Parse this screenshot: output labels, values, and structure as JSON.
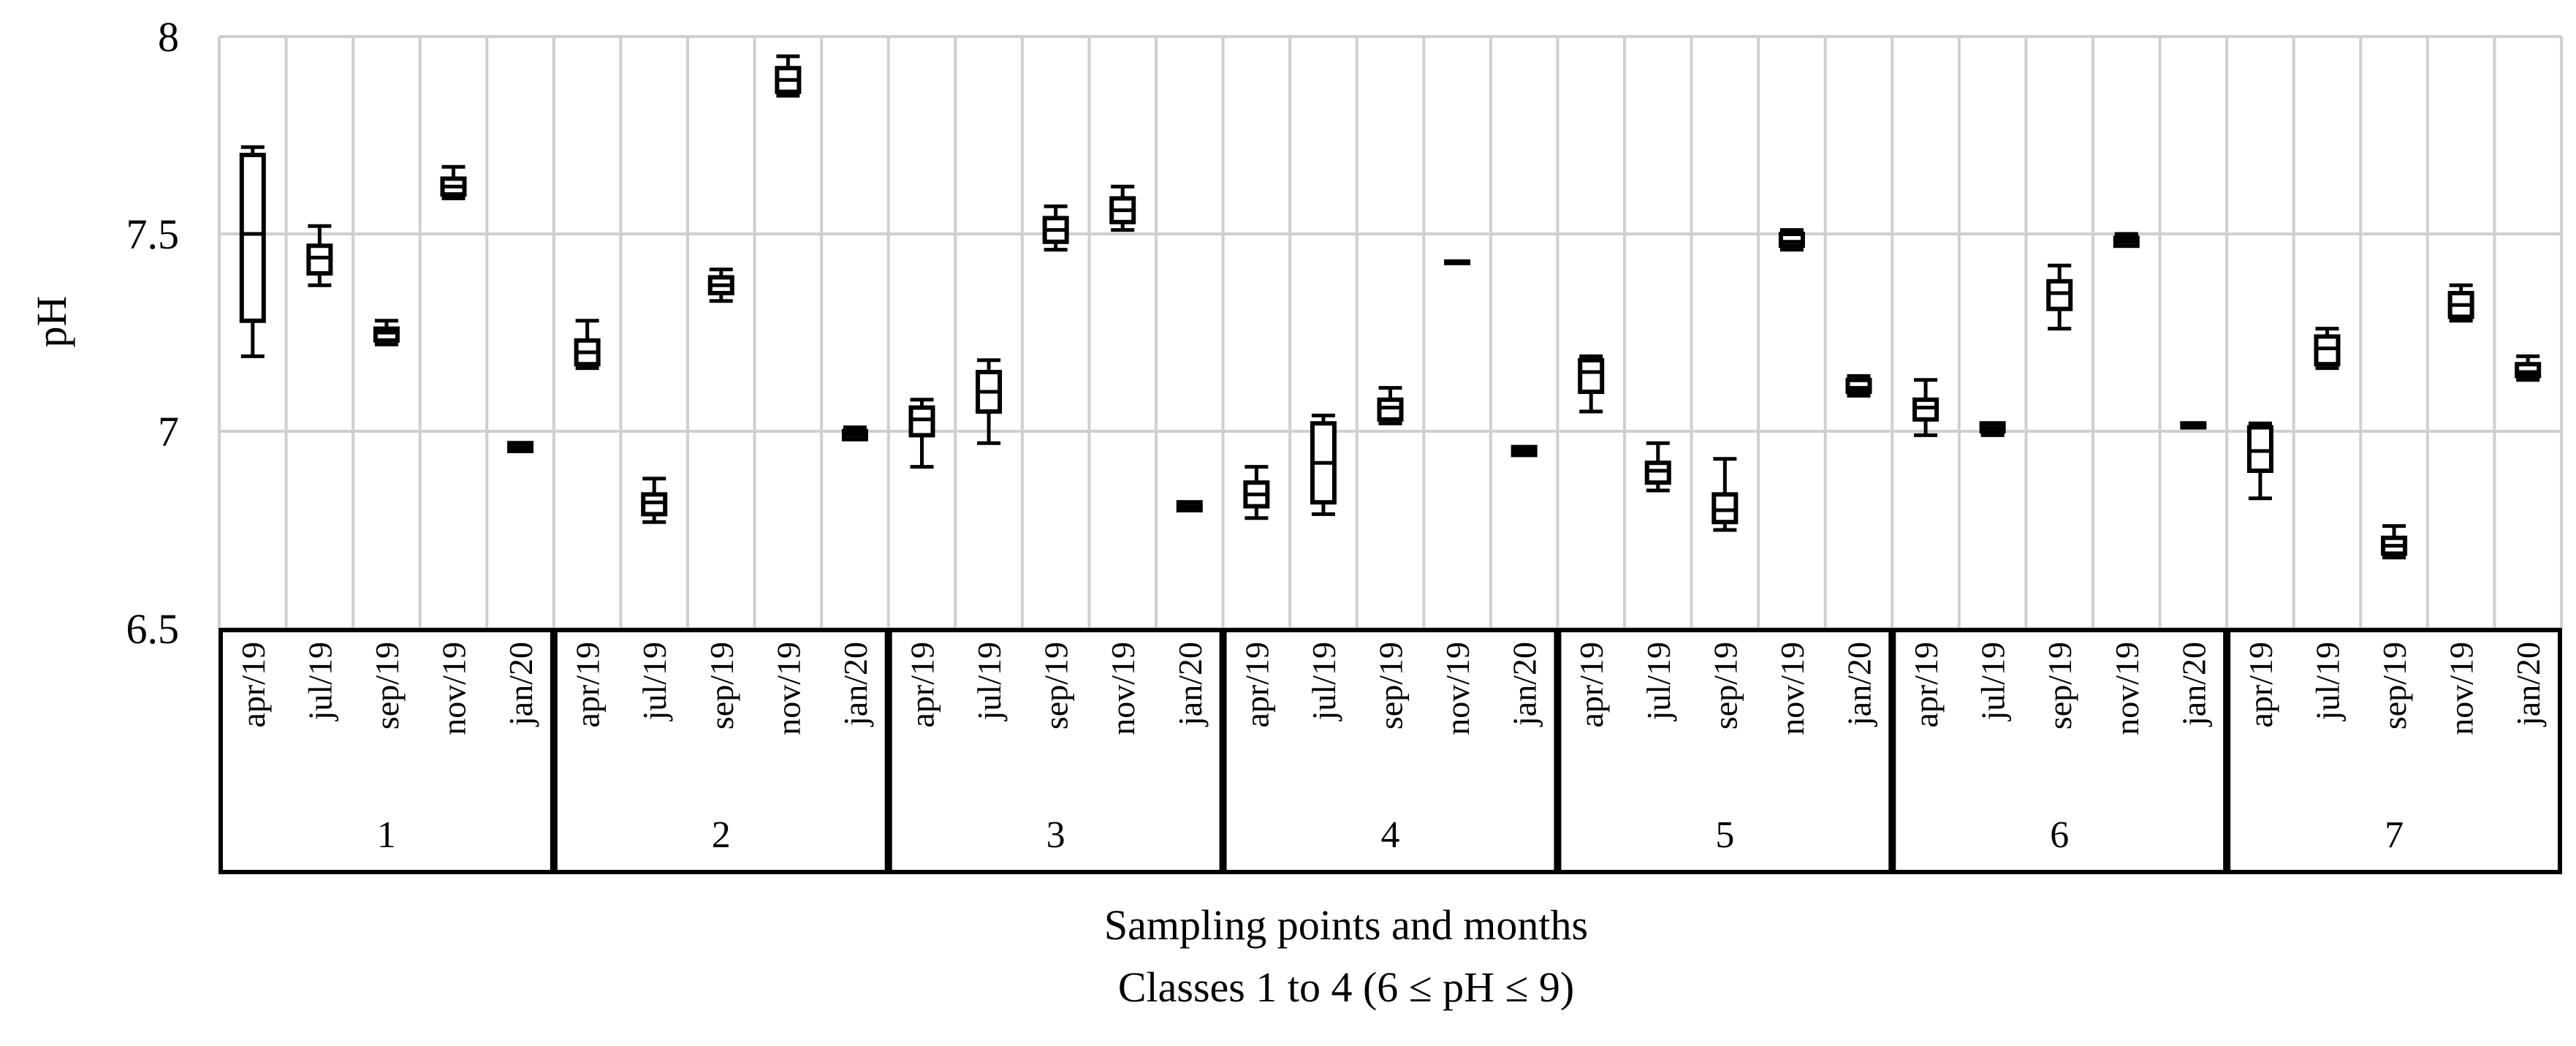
{
  "chart_data": {
    "type": "box",
    "ylabel": "pH",
    "xlabel": "Sampling points and months",
    "subtitle": "Classes 1 to 4 (6 ≤ pH ≤ 9)",
    "ylim": [
      6.5,
      8
    ],
    "yticks": [
      "6.5",
      "7",
      "7.5",
      "8"
    ],
    "ytick_values": [
      6.5,
      7.0,
      7.5,
      8.0
    ],
    "grid": true,
    "months": [
      "apr/19",
      "jul/19",
      "sep/19",
      "nov/19",
      "jan/20"
    ],
    "groups": [
      {
        "label": "1",
        "boxes": [
          {
            "month": "apr/19",
            "min": 7.19,
            "q1": 7.28,
            "median": 7.5,
            "q3": 7.7,
            "max": 7.72
          },
          {
            "month": "jul/19",
            "min": 7.37,
            "q1": 7.4,
            "median": 7.44,
            "q3": 7.47,
            "max": 7.52
          },
          {
            "month": "sep/19",
            "min": 7.22,
            "q1": 7.23,
            "median": 7.25,
            "q3": 7.26,
            "max": 7.28
          },
          {
            "month": "nov/19",
            "min": 7.59,
            "q1": 7.6,
            "median": 7.62,
            "q3": 7.64,
            "max": 7.67
          },
          {
            "month": "jan/20",
            "min": 6.95,
            "q1": 6.95,
            "median": 6.96,
            "q3": 6.97,
            "max": 6.97
          }
        ]
      },
      {
        "label": "2",
        "boxes": [
          {
            "month": "apr/19",
            "min": 7.16,
            "q1": 7.17,
            "median": 7.2,
            "q3": 7.23,
            "max": 7.28
          },
          {
            "month": "jul/19",
            "min": 6.77,
            "q1": 6.79,
            "median": 6.82,
            "q3": 6.84,
            "max": 6.88
          },
          {
            "month": "sep/19",
            "min": 7.33,
            "q1": 7.35,
            "median": 7.37,
            "q3": 7.39,
            "max": 7.41
          },
          {
            "month": "nov/19",
            "min": 7.85,
            "q1": 7.86,
            "median": 7.89,
            "q3": 7.92,
            "max": 7.95
          },
          {
            "month": "jan/20",
            "min": 6.98,
            "q1": 6.98,
            "median": 6.99,
            "q3": 7.0,
            "max": 7.01
          }
        ]
      },
      {
        "label": "3",
        "boxes": [
          {
            "month": "apr/19",
            "min": 6.91,
            "q1": 6.99,
            "median": 7.03,
            "q3": 7.06,
            "max": 7.08
          },
          {
            "month": "jul/19",
            "min": 6.97,
            "q1": 7.05,
            "median": 7.1,
            "q3": 7.15,
            "max": 7.18
          },
          {
            "month": "sep/19",
            "min": 7.46,
            "q1": 7.48,
            "median": 7.51,
            "q3": 7.54,
            "max": 7.57
          },
          {
            "month": "nov/19",
            "min": 7.51,
            "q1": 7.53,
            "median": 7.56,
            "q3": 7.59,
            "max": 7.62
          },
          {
            "month": "jan/20",
            "min": 6.8,
            "q1": 6.8,
            "median": 6.81,
            "q3": 6.82,
            "max": 6.82
          }
        ]
      },
      {
        "label": "4",
        "boxes": [
          {
            "month": "apr/19",
            "min": 6.78,
            "q1": 6.81,
            "median": 6.84,
            "q3": 6.87,
            "max": 6.91
          },
          {
            "month": "jul/19",
            "min": 6.79,
            "q1": 6.82,
            "median": 6.92,
            "q3": 7.02,
            "max": 7.04
          },
          {
            "month": "sep/19",
            "min": 7.02,
            "q1": 7.03,
            "median": 7.06,
            "q3": 7.08,
            "max": 7.11
          },
          {
            "month": "nov/19",
            "min": 7.43,
            "q1": 7.43,
            "median": 7.43,
            "q3": 7.43,
            "max": 7.43
          },
          {
            "month": "jan/20",
            "min": 6.94,
            "q1": 6.94,
            "median": 6.95,
            "q3": 6.96,
            "max": 6.96
          }
        ]
      },
      {
        "label": "5",
        "boxes": [
          {
            "month": "apr/19",
            "min": 7.05,
            "q1": 7.1,
            "median": 7.15,
            "q3": 7.18,
            "max": 7.19
          },
          {
            "month": "jul/19",
            "min": 6.85,
            "q1": 6.87,
            "median": 6.9,
            "q3": 6.92,
            "max": 6.97
          },
          {
            "month": "sep/19",
            "min": 6.75,
            "q1": 6.77,
            "median": 6.8,
            "q3": 6.84,
            "max": 6.93
          },
          {
            "month": "nov/19",
            "min": 7.46,
            "q1": 7.47,
            "median": 7.48,
            "q3": 7.5,
            "max": 7.51
          },
          {
            "month": "jan/20",
            "min": 7.09,
            "q1": 7.1,
            "median": 7.11,
            "q3": 7.13,
            "max": 7.14
          }
        ]
      },
      {
        "label": "6",
        "boxes": [
          {
            "month": "apr/19",
            "min": 6.99,
            "q1": 7.03,
            "median": 7.06,
            "q3": 7.08,
            "max": 7.13
          },
          {
            "month": "jul/19",
            "min": 6.99,
            "q1": 7.0,
            "median": 7.01,
            "q3": 7.02,
            "max": 7.02
          },
          {
            "month": "sep/19",
            "min": 7.26,
            "q1": 7.31,
            "median": 7.35,
            "q3": 7.38,
            "max": 7.42
          },
          {
            "month": "nov/19",
            "min": 7.47,
            "q1": 7.47,
            "median": 7.48,
            "q3": 7.49,
            "max": 7.5
          },
          {
            "month": "jan/20",
            "min": 7.01,
            "q1": 7.01,
            "median": 7.02,
            "q3": 7.02,
            "max": 7.02
          }
        ]
      },
      {
        "label": "7",
        "boxes": [
          {
            "month": "apr/19",
            "min": 6.83,
            "q1": 6.9,
            "median": 6.95,
            "q3": 7.01,
            "max": 7.02
          },
          {
            "month": "jul/19",
            "min": 7.16,
            "q1": 7.17,
            "median": 7.21,
            "q3": 7.24,
            "max": 7.26
          },
          {
            "month": "sep/19",
            "min": 6.68,
            "q1": 6.69,
            "median": 6.71,
            "q3": 6.73,
            "max": 6.76
          },
          {
            "month": "nov/19",
            "min": 7.28,
            "q1": 7.29,
            "median": 7.32,
            "q3": 7.35,
            "max": 7.37
          },
          {
            "month": "jan/20",
            "min": 7.13,
            "q1": 7.14,
            "median": 7.15,
            "q3": 7.17,
            "max": 7.19
          }
        ]
      }
    ]
  }
}
